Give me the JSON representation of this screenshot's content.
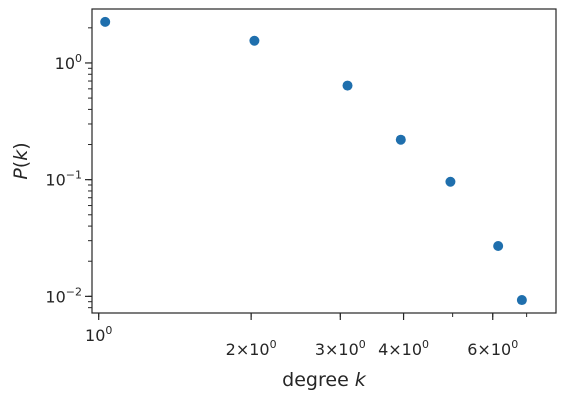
{
  "chart_data": {
    "type": "scatter",
    "title": "",
    "xlabel": {
      "prefix": "degree ",
      "var": "k"
    },
    "ylabel": {
      "fn": "P",
      "open": "(",
      "var": "k",
      "close": ")"
    },
    "xscale": "log",
    "yscale": "log",
    "xlim": [
      0.97,
      8.0
    ],
    "ylim": [
      0.0072,
      2.9
    ],
    "grid": false,
    "legend": "none",
    "marker_color": "#1f6fad",
    "x_ticks": [
      {
        "value": 1,
        "base": "10",
        "exp": "0"
      },
      {
        "value": 2,
        "base": "2×10",
        "exp": "0"
      },
      {
        "value": 3,
        "base": "3×10",
        "exp": "0"
      },
      {
        "value": 4,
        "base": "4×10",
        "exp": "0"
      },
      {
        "value": 6,
        "base": "6×10",
        "exp": "0"
      }
    ],
    "y_ticks": [
      {
        "value": 0.01,
        "base": "10",
        "exp": "−2"
      },
      {
        "value": 0.1,
        "base": "10",
        "exp": "−1"
      },
      {
        "value": 1,
        "base": "10",
        "exp": "0"
      }
    ],
    "points": [
      {
        "x": 1.03,
        "y": 2.25
      },
      {
        "x": 2.03,
        "y": 1.55
      },
      {
        "x": 3.1,
        "y": 0.64
      },
      {
        "x": 3.95,
        "y": 0.22
      },
      {
        "x": 4.95,
        "y": 0.096
      },
      {
        "x": 6.15,
        "y": 0.027
      },
      {
        "x": 6.85,
        "y": 0.0093
      }
    ]
  }
}
